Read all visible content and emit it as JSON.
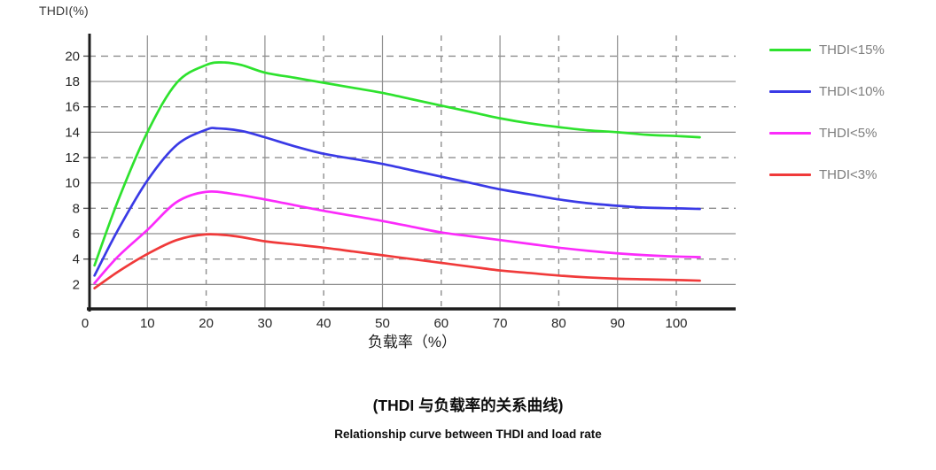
{
  "y_axis": {
    "title": "THDI(%)"
  },
  "x_axis": {
    "title": "负载率（%）"
  },
  "captions": {
    "zh": "(THDI 与负载率的关系曲线)",
    "en": "Relationship curve between THDI and load rate"
  },
  "colors": {
    "background": "#ffffff",
    "grid": "#8e8e8e",
    "axis": "#1c1c1c",
    "tick_text": "#262626",
    "legend_text": "#7d7d7d"
  },
  "chart_data": {
    "type": "line",
    "title": "(THDI 与负载率的关系曲线)",
    "subtitle": "Relationship curve between THDI and load rate",
    "xlabel": "负载率（%）",
    "ylabel": "THDI(%)",
    "xlim": [
      0,
      110
    ],
    "ylim": [
      0,
      21.6
    ],
    "x_ticks": [
      0,
      10,
      20,
      30,
      40,
      50,
      60,
      70,
      80,
      90,
      100
    ],
    "y_ticks": [
      2,
      4,
      6,
      8,
      10,
      12,
      14,
      16,
      18,
      20
    ],
    "grid": {
      "horizontal_solid": [
        2,
        6,
        10,
        14,
        18
      ],
      "horizontal_dashed": [
        4,
        8,
        12,
        16,
        20
      ],
      "vertical_solid": [
        10,
        30,
        50,
        70,
        90
      ],
      "vertical_dashed": [
        20,
        40,
        60,
        80,
        100
      ]
    },
    "legend_position": "right",
    "series": [
      {
        "name": "THDI<15%",
        "color": "#2ee22e",
        "x": [
          1,
          5,
          10,
          15,
          20,
          23,
          26,
          30,
          35,
          40,
          45,
          50,
          55,
          60,
          65,
          70,
          75,
          80,
          85,
          90,
          95,
          100,
          104
        ],
        "y": [
          3.5,
          8.6,
          14.0,
          17.9,
          19.3,
          19.5,
          19.3,
          18.7,
          18.3,
          17.9,
          17.5,
          17.1,
          16.6,
          16.1,
          15.6,
          15.1,
          14.7,
          14.4,
          14.15,
          14.0,
          13.8,
          13.7,
          13.6
        ]
      },
      {
        "name": "THDI<10%",
        "color": "#3a3ae6",
        "x": [
          1,
          5,
          10,
          15,
          20,
          22,
          26,
          30,
          35,
          40,
          45,
          50,
          55,
          60,
          65,
          70,
          75,
          80,
          85,
          90,
          95,
          100,
          104
        ],
        "y": [
          2.7,
          6.3,
          10.2,
          13.0,
          14.2,
          14.3,
          14.1,
          13.6,
          12.9,
          12.3,
          11.9,
          11.5,
          11.0,
          10.5,
          10.0,
          9.5,
          9.1,
          8.7,
          8.4,
          8.2,
          8.05,
          8.0,
          7.95
        ]
      },
      {
        "name": "THDI<5%",
        "color": "#fb2bfb",
        "x": [
          1,
          5,
          10,
          15,
          20,
          25,
          30,
          35,
          40,
          45,
          50,
          55,
          60,
          65,
          70,
          75,
          80,
          85,
          90,
          95,
          100,
          104
        ],
        "y": [
          2.1,
          4.2,
          6.3,
          8.5,
          9.3,
          9.1,
          8.7,
          8.25,
          7.8,
          7.4,
          7.0,
          6.55,
          6.1,
          5.8,
          5.5,
          5.2,
          4.9,
          4.65,
          4.45,
          4.3,
          4.2,
          4.15
        ]
      },
      {
        "name": "THDI<3%",
        "color": "#f03a3a",
        "x": [
          1,
          5,
          10,
          15,
          20,
          25,
          30,
          35,
          40,
          45,
          50,
          55,
          60,
          65,
          70,
          75,
          80,
          85,
          90,
          95,
          100,
          104
        ],
        "y": [
          1.7,
          3.0,
          4.4,
          5.5,
          5.95,
          5.8,
          5.4,
          5.15,
          4.9,
          4.6,
          4.3,
          4.0,
          3.7,
          3.4,
          3.1,
          2.9,
          2.7,
          2.55,
          2.45,
          2.4,
          2.35,
          2.3
        ]
      }
    ]
  }
}
